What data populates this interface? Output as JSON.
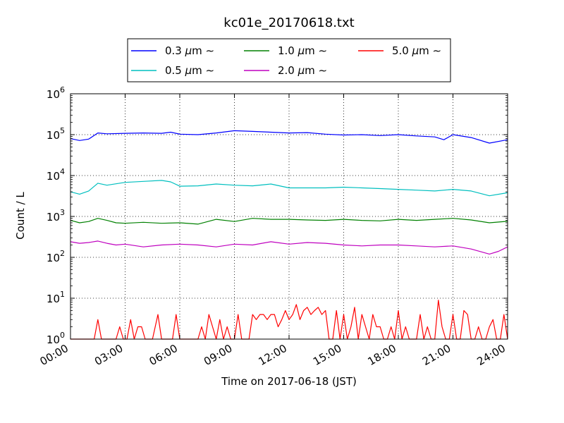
{
  "chart_data": {
    "type": "line",
    "title": "kc01e_20170618.txt",
    "xlabel": "Time on 2017-06-18 (JST)",
    "ylabel": "Count / L",
    "yscale": "log",
    "xlim": [
      "00:00",
      "24:00"
    ],
    "ylim": [
      1,
      1000000
    ],
    "x_ticks": [
      "00:00",
      "03:00",
      "06:00",
      "09:00",
      "12:00",
      "15:00",
      "18:00",
      "21:00",
      "24:00"
    ],
    "y_ticks": [
      {
        "base": "10",
        "exp": "0"
      },
      {
        "base": "10",
        "exp": "1"
      },
      {
        "base": "10",
        "exp": "2"
      },
      {
        "base": "10",
        "exp": "3"
      },
      {
        "base": "10",
        "exp": "4"
      },
      {
        "base": "10",
        "exp": "5"
      },
      {
        "base": "10",
        "exp": "6"
      }
    ],
    "grid": true,
    "legend_position": "top-center",
    "legend": [
      {
        "size": "0.3 ",
        "unit": "μ",
        "suffix": "m  ∼",
        "color": "#0000ff"
      },
      {
        "size": "1.0 ",
        "unit": "μ",
        "suffix": "m  ∼",
        "color": "#008000"
      },
      {
        "size": "5.0 ",
        "unit": "μ",
        "suffix": "m  ∼",
        "color": "#ff0000"
      },
      {
        "size": "0.5 ",
        "unit": "μ",
        "suffix": "m  ∼",
        "color": "#00bfbf"
      },
      {
        "size": "2.0 ",
        "unit": "μ",
        "suffix": "m  ∼",
        "color": "#bf00bf"
      }
    ],
    "series": [
      {
        "name": "0.3 μm ∼",
        "color": "#0000ff",
        "x_hours": [
          0,
          0.5,
          1,
          1.5,
          2,
          3,
          4,
          5,
          5.5,
          6,
          7,
          8,
          9,
          10,
          11,
          12,
          13,
          14,
          15,
          16,
          17,
          18,
          19,
          20,
          20.5,
          21,
          22,
          23,
          24
        ],
        "values": [
          80000,
          72000,
          78000,
          110000,
          105000,
          108000,
          110000,
          108000,
          115000,
          103000,
          100000,
          110000,
          125000,
          120000,
          115000,
          110000,
          112000,
          103000,
          98000,
          100000,
          95000,
          100000,
          93000,
          88000,
          75000,
          100000,
          85000,
          62000,
          75000
        ]
      },
      {
        "name": "0.5 μm ∼",
        "color": "#00bfbf",
        "x_hours": [
          0,
          0.5,
          1,
          1.5,
          2,
          3,
          4,
          5,
          5.5,
          6,
          7,
          8,
          9,
          10,
          11,
          12,
          13,
          14,
          15,
          16,
          17,
          18,
          19,
          20,
          21,
          22,
          23,
          24
        ],
        "values": [
          4000,
          3500,
          4200,
          6500,
          5800,
          6800,
          7200,
          7600,
          7000,
          5500,
          5600,
          6200,
          5800,
          5600,
          6200,
          5000,
          5000,
          5000,
          5200,
          5000,
          4800,
          4600,
          4400,
          4200,
          4600,
          4200,
          3200,
          3800
        ]
      },
      {
        "name": "1.0 μm ∼",
        "color": "#008000",
        "x_hours": [
          0,
          0.5,
          1,
          1.5,
          2,
          2.5,
          3,
          4,
          5,
          6,
          7,
          8,
          9,
          10,
          11,
          12,
          13,
          14,
          15,
          16,
          17,
          18,
          19,
          20,
          21,
          22,
          23,
          24
        ],
        "values": [
          800,
          700,
          750,
          900,
          800,
          700,
          680,
          720,
          680,
          700,
          650,
          850,
          750,
          900,
          850,
          850,
          820,
          800,
          850,
          800,
          780,
          850,
          800,
          850,
          900,
          820,
          700,
          760
        ]
      },
      {
        "name": "2.0 μm ∼",
        "color": "#bf00bf",
        "x_hours": [
          0,
          0.5,
          1,
          1.5,
          2,
          2.5,
          3,
          4,
          5,
          6,
          7,
          8,
          9,
          10,
          11,
          12,
          13,
          14,
          15,
          16,
          17,
          18,
          19,
          20,
          21,
          22,
          23,
          23.5,
          24
        ],
        "values": [
          240,
          220,
          230,
          250,
          220,
          200,
          210,
          180,
          200,
          210,
          200,
          180,
          210,
          200,
          240,
          210,
          230,
          220,
          200,
          190,
          200,
          200,
          190,
          180,
          190,
          160,
          120,
          140,
          180
        ]
      },
      {
        "name": "5.0 μm ∼",
        "color": "#ff0000",
        "x_hours": [
          0,
          0.5,
          1,
          1.3,
          1.5,
          1.7,
          2,
          2.3,
          2.5,
          2.7,
          2.9,
          3.1,
          3.3,
          3.5,
          3.7,
          3.9,
          4.1,
          4.3,
          4.5,
          4.8,
          5,
          5.2,
          5.4,
          5.6,
          5.8,
          6,
          6.2,
          6.5,
          6.7,
          7,
          7.2,
          7.4,
          7.6,
          7.8,
          8,
          8.2,
          8.4,
          8.6,
          8.8,
          9,
          9.2,
          9.4,
          9.6,
          9.8,
          10,
          10.2,
          10.4,
          10.6,
          10.8,
          11,
          11.2,
          11.4,
          11.6,
          11.8,
          12,
          12.2,
          12.4,
          12.6,
          12.8,
          13,
          13.2,
          13.4,
          13.6,
          13.8,
          14,
          14.2,
          14.4,
          14.6,
          14.8,
          15,
          15.2,
          15.4,
          15.6,
          15.8,
          16,
          16.2,
          16.4,
          16.6,
          16.8,
          17,
          17.2,
          17.4,
          17.6,
          17.8,
          18,
          18.2,
          18.4,
          18.6,
          18.8,
          19,
          19.2,
          19.4,
          19.6,
          19.8,
          20,
          20.2,
          20.4,
          20.6,
          20.8,
          21,
          21.2,
          21.4,
          21.6,
          21.8,
          22,
          22.2,
          22.4,
          22.6,
          22.8,
          23,
          23.2,
          23.4,
          23.6,
          23.8,
          24
        ],
        "values": [
          1,
          1,
          1,
          1,
          3,
          1,
          1,
          1,
          1,
          2,
          1,
          1,
          3,
          1,
          2,
          2,
          1,
          1,
          1,
          4,
          1,
          1,
          1,
          1,
          4,
          1,
          1,
          1,
          1,
          1,
          2,
          1,
          4,
          2,
          1,
          3,
          1,
          2,
          1,
          1,
          4,
          1,
          1,
          1,
          4,
          3,
          4,
          4,
          3,
          4,
          4,
          2,
          3,
          5,
          3,
          4,
          7,
          3,
          5,
          6,
          4,
          5,
          6,
          4,
          5,
          1,
          1,
          5,
          1,
          4,
          1,
          2,
          6,
          1,
          4,
          2,
          1,
          4,
          2,
          2,
          1,
          1,
          2,
          1,
          5,
          1,
          2,
          1,
          1,
          1,
          4,
          1,
          2,
          1,
          1,
          9,
          2,
          1,
          1,
          4,
          1,
          1,
          5,
          4,
          1,
          1,
          2,
          1,
          1,
          2,
          3,
          1,
          1,
          4,
          1
        ]
      }
    ]
  }
}
